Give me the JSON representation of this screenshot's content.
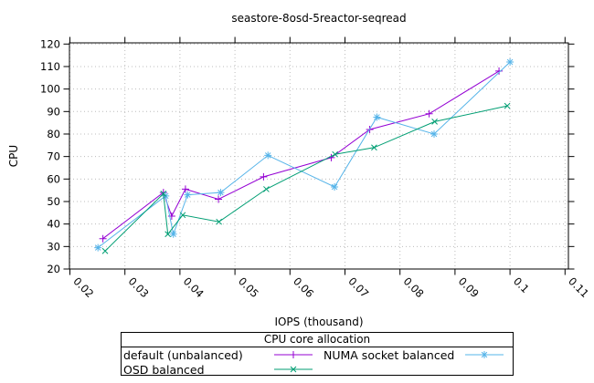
{
  "title": "seastore-8osd-5reactor-seqread",
  "x_axis": {
    "label": "IOPS (thousand)",
    "ticks": [
      0.02,
      0.03,
      0.04,
      0.05,
      0.06,
      0.07,
      0.08,
      0.09,
      0.1,
      0.11
    ],
    "tick_labels": [
      "0.02",
      "0.03",
      "0.04",
      "0.05",
      "0.06",
      "0.07",
      "0.08",
      "0.09",
      "0.1",
      "0.11"
    ]
  },
  "y_axis": {
    "label": "CPU",
    "ticks": [
      20,
      30,
      40,
      50,
      60,
      70,
      80,
      90,
      100,
      110,
      120
    ],
    "tick_labels": [
      "20",
      "30",
      "40",
      "50",
      "60",
      "70",
      "80",
      "90",
      "100",
      "110",
      "120"
    ]
  },
  "legend": {
    "title": "CPU core allocation",
    "entries": [
      {
        "label": "default (unbalanced)",
        "series": 0
      },
      {
        "label": "NUMA socket balanced",
        "series": 1
      },
      {
        "label": "OSD balanced",
        "series": 2
      }
    ]
  },
  "chart_data": {
    "type": "line",
    "title": "seastore-8osd-5reactor-seqread",
    "xlabel": "IOPS (thousand)",
    "ylabel": "CPU",
    "xlim": [
      0.02,
      0.11
    ],
    "ylim": [
      20,
      120
    ],
    "grid": true,
    "grid_color": "#bcbcbc",
    "legend_title": "CPU core allocation",
    "legend_position": "below-chart",
    "series": [
      {
        "name": "default (unbalanced)",
        "color": "#9400d3",
        "marker": "plus",
        "points": [
          [
            0.026,
            33.5
          ],
          [
            0.037,
            54
          ],
          [
            0.0385,
            43.5
          ],
          [
            0.041,
            55.5
          ],
          [
            0.047,
            51
          ],
          [
            0.0552,
            61
          ],
          [
            0.0675,
            69.5
          ],
          [
            0.0745,
            82
          ],
          [
            0.0853,
            89
          ],
          [
            0.098,
            108
          ]
        ]
      },
      {
        "name": "NUMA socket balanced",
        "color": "#56b4e9",
        "marker": "asterisk",
        "points": [
          [
            0.0251,
            29.5
          ],
          [
            0.0374,
            52.5
          ],
          [
            0.0388,
            35.5
          ],
          [
            0.0414,
            53
          ],
          [
            0.0474,
            54
          ],
          [
            0.056,
            70.5
          ],
          [
            0.0681,
            56.5
          ],
          [
            0.0758,
            87.5
          ],
          [
            0.0862,
            80
          ],
          [
            0.1,
            112
          ]
        ]
      },
      {
        "name": "OSD balanced",
        "color": "#009e73",
        "marker": "cross",
        "points": [
          [
            0.0264,
            28
          ],
          [
            0.037,
            53.5
          ],
          [
            0.0378,
            35.5
          ],
          [
            0.0405,
            44
          ],
          [
            0.0471,
            41
          ],
          [
            0.0557,
            55.5
          ],
          [
            0.0682,
            71
          ],
          [
            0.0753,
            74
          ],
          [
            0.0863,
            85.5
          ],
          [
            0.0995,
            92.5
          ]
        ]
      }
    ]
  }
}
